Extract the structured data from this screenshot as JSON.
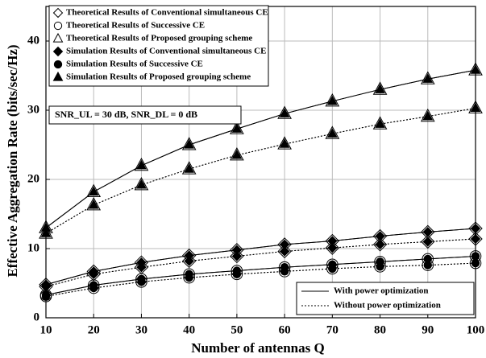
{
  "chart_data": {
    "type": "line",
    "xlabel": "Number of antennas Q",
    "ylabel": "Effective Aggregation Rate (bits/sec/Hz)",
    "x": [
      10,
      20,
      30,
      40,
      50,
      60,
      70,
      80,
      90,
      100
    ],
    "xlim": [
      10,
      100
    ],
    "xticks": [
      10,
      20,
      30,
      40,
      50,
      60,
      70,
      80,
      90,
      100
    ],
    "ylim": [
      0,
      45
    ],
    "yticks": [
      0,
      10,
      20,
      30,
      40
    ],
    "grid": true,
    "annotation": "SNR_UL = 30 dB, SNR_DL = 0 dB",
    "line_styles": [
      {
        "name": "With power optimization",
        "dash": "solid"
      },
      {
        "name": "Without power optimization",
        "dash": "dotted"
      }
    ],
    "series": [
      {
        "name": "Theoretical Results of Conventional simultaneous CE",
        "marker": "diamond",
        "filled": false,
        "with_power": [
          4.8,
          6.7,
          8.0,
          9.0,
          9.8,
          10.6,
          11.1,
          11.8,
          12.4,
          12.9
        ],
        "without_power": [
          4.5,
          6.3,
          7.3,
          8.2,
          8.9,
          9.6,
          10.1,
          10.6,
          11.0,
          11.4
        ]
      },
      {
        "name": "Theoretical Results of Successive CE",
        "marker": "circle",
        "filled": false,
        "with_power": [
          3.3,
          4.7,
          5.6,
          6.3,
          6.8,
          7.3,
          7.7,
          8.1,
          8.5,
          8.9
        ],
        "without_power": [
          3.1,
          4.3,
          5.2,
          5.8,
          6.3,
          6.7,
          7.1,
          7.4,
          7.6,
          7.9
        ]
      },
      {
        "name": "Theoretical Results of Proposed grouping scheme",
        "marker": "triangle",
        "filled": false,
        "with_power": [
          13.0,
          18.2,
          22.0,
          25.0,
          27.3,
          29.5,
          31.3,
          33.0,
          34.5,
          35.8
        ],
        "without_power": [
          12.2,
          16.3,
          19.2,
          21.5,
          23.5,
          25.1,
          26.6,
          28.0,
          29.1,
          30.3
        ]
      },
      {
        "name": "Simulation Results of Conventional simultaneous CE",
        "marker": "diamond",
        "filled": true,
        "with_power": [
          4.8,
          6.7,
          8.0,
          9.0,
          9.8,
          10.6,
          11.1,
          11.8,
          12.4,
          12.9
        ],
        "without_power": [
          4.5,
          6.3,
          7.3,
          8.2,
          8.9,
          9.6,
          10.1,
          10.6,
          11.0,
          11.4
        ]
      },
      {
        "name": "Simulation Results of Successive CE",
        "marker": "circle",
        "filled": true,
        "with_power": [
          3.3,
          4.7,
          5.6,
          6.3,
          6.8,
          7.3,
          7.7,
          8.1,
          8.5,
          8.9
        ],
        "without_power": [
          3.1,
          4.3,
          5.2,
          5.8,
          6.3,
          6.7,
          7.1,
          7.4,
          7.6,
          7.9
        ]
      },
      {
        "name": "Simulation Results of Proposed grouping scheme",
        "marker": "triangle",
        "filled": true,
        "with_power": [
          13.0,
          18.2,
          22.0,
          25.0,
          27.3,
          29.5,
          31.3,
          33.0,
          34.5,
          35.8
        ],
        "without_power": [
          12.2,
          16.3,
          19.2,
          21.5,
          23.5,
          25.1,
          26.6,
          28.0,
          29.1,
          30.3
        ]
      }
    ]
  }
}
